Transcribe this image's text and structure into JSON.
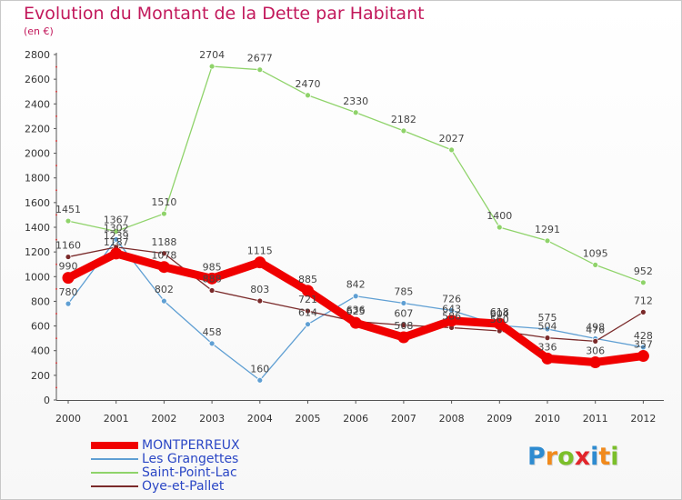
{
  "title": "Evolution du Montant de la Dette par Habitant",
  "subtitle": "(en €)",
  "brand": {
    "text": "Proxiti",
    "letters": [
      {
        "ch": "P",
        "color": "#2e8bd0"
      },
      {
        "ch": "r",
        "color": "#f18a1c"
      },
      {
        "ch": "o",
        "color": "#7bbf2a"
      },
      {
        "ch": "x",
        "color": "#e2252b"
      },
      {
        "ch": "i",
        "color": "#2e8bd0"
      },
      {
        "ch": "t",
        "color": "#f18a1c"
      },
      {
        "ch": "i",
        "color": "#7bbf2a"
      }
    ]
  },
  "chart_data": {
    "type": "line",
    "x": [
      2000,
      2001,
      2002,
      2003,
      2004,
      2005,
      2006,
      2007,
      2008,
      2009,
      2010,
      2011,
      2012
    ],
    "ylim": [
      0,
      2800
    ],
    "yticks": [
      0,
      200,
      400,
      600,
      800,
      1000,
      1200,
      1400,
      1600,
      1800,
      2000,
      2200,
      2400,
      2600,
      2800
    ],
    "grid": false,
    "legend_position": "bottom-left",
    "series": [
      {
        "name": "MONTPERREUX",
        "color": "#f00000",
        "values": [
          990,
          1187,
          1078,
          985,
          1115,
          885,
          625,
          508,
          643,
          618,
          336,
          306,
          357
        ]
      },
      {
        "name": "Les Grangettes",
        "color": "#5f9fd3",
        "values": [
          780,
          1302,
          802,
          458,
          160,
          614,
          842,
          785,
          726,
          604,
          575,
          498,
          428
        ]
      },
      {
        "name": "Saint-Point-Lac",
        "color": "#8fd36a",
        "values": [
          1451,
          1367,
          1510,
          2704,
          2677,
          2470,
          2330,
          2182,
          2027,
          1400,
          1291,
          1095,
          952
        ]
      },
      {
        "name": "Oye-et-Pallet",
        "color": "#7a2a2a",
        "values": [
          1160,
          1239,
          1188,
          888,
          803,
          721,
          636,
          607,
          586,
          560,
          504,
          476,
          712
        ]
      }
    ]
  }
}
